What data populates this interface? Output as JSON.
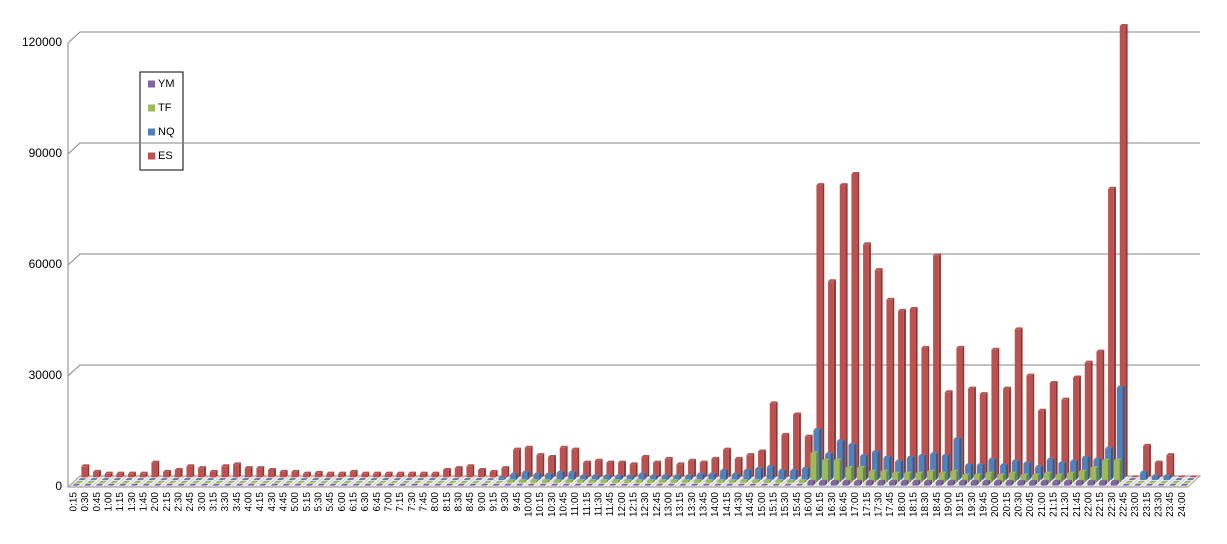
{
  "chart_data": {
    "type": "bar3d",
    "categories": [
      "0:15",
      "0:30",
      "0:45",
      "1:00",
      "1:15",
      "1:30",
      "1:45",
      "2:00",
      "2:15",
      "2:30",
      "2:45",
      "3:00",
      "3:15",
      "3:30",
      "3:45",
      "4:00",
      "4:15",
      "4:30",
      "4:45",
      "5:00",
      "5:15",
      "5:30",
      "5:45",
      "6:00",
      "6:15",
      "6:30",
      "6:45",
      "7:00",
      "7:15",
      "7:30",
      "7:45",
      "8:00",
      "8:15",
      "8:30",
      "8:45",
      "9:00",
      "9:15",
      "9:30",
      "9:45",
      "10:00",
      "10:15",
      "10:30",
      "10:45",
      "11:00",
      "11:15",
      "11:30",
      "11:45",
      "12:00",
      "12:15",
      "12:30",
      "12:45",
      "13:00",
      "13:15",
      "13:30",
      "13:45",
      "14:00",
      "14:15",
      "14:30",
      "14:45",
      "15:00",
      "15:15",
      "15:30",
      "15:45",
      "16:00",
      "16:15",
      "16:30",
      "16:45",
      "17:00",
      "17:15",
      "17:30",
      "17:45",
      "18:00",
      "18:15",
      "18:30",
      "18:45",
      "19:00",
      "19:15",
      "19:30",
      "19:45",
      "20:00",
      "20:15",
      "20:30",
      "20:45",
      "21:00",
      "21:15",
      "21:30",
      "21:45",
      "22:00",
      "22:15",
      "22:30",
      "22:45",
      "23:00",
      "23:15",
      "23:30",
      "23:45",
      "24:00"
    ],
    "series": [
      {
        "name": "YM",
        "color": "#8064a2",
        "values": [
          0,
          0,
          0,
          0,
          0,
          0,
          0,
          0,
          0,
          0,
          0,
          0,
          0,
          0,
          0,
          0,
          0,
          0,
          0,
          0,
          0,
          0,
          0,
          0,
          0,
          0,
          0,
          0,
          0,
          0,
          0,
          0,
          0,
          0,
          0,
          0,
          0,
          0,
          0,
          0,
          0,
          0,
          0,
          0,
          0,
          0,
          0,
          0,
          0,
          0,
          0,
          0,
          0,
          0,
          0,
          0,
          0,
          0,
          0,
          0,
          0,
          0,
          0,
          1000,
          1000,
          1000,
          1000,
          1000,
          1000,
          1000,
          1000,
          1000,
          1000,
          1000,
          1000,
          1000,
          1000,
          1000,
          1000,
          1000,
          1000,
          1000,
          1000,
          1000,
          1000,
          1000,
          1000,
          1000,
          1000,
          1000,
          0,
          0,
          0,
          0,
          0,
          0
        ]
      },
      {
        "name": "TF",
        "color": "#9bbb59",
        "values": [
          0,
          0,
          0,
          0,
          0,
          0,
          0,
          0,
          0,
          0,
          0,
          0,
          0,
          0,
          0,
          0,
          0,
          0,
          0,
          0,
          0,
          0,
          0,
          0,
          0,
          0,
          0,
          0,
          0,
          0,
          0,
          0,
          0,
          0,
          0,
          0,
          0,
          500,
          500,
          500,
          500,
          500,
          500,
          500,
          500,
          500,
          500,
          500,
          500,
          500,
          500,
          500,
          500,
          500,
          500,
          500,
          500,
          500,
          500,
          500,
          500,
          500,
          500,
          8000,
          6000,
          6000,
          4000,
          4000,
          3000,
          3000,
          2500,
          2500,
          2500,
          3000,
          2500,
          3000,
          2000,
          2000,
          2500,
          2000,
          2500,
          2000,
          2000,
          2500,
          2000,
          2500,
          3000,
          4000,
          6000,
          6000,
          0,
          0,
          0,
          0,
          0,
          0
        ]
      },
      {
        "name": "NQ",
        "color": "#4f81bd",
        "values": [
          0,
          0,
          0,
          0,
          0,
          0,
          0,
          0,
          0,
          0,
          0,
          0,
          0,
          0,
          0,
          0,
          0,
          0,
          0,
          0,
          0,
          0,
          0,
          0,
          0,
          0,
          0,
          0,
          0,
          0,
          0,
          0,
          0,
          0,
          0,
          0,
          500,
          1500,
          2000,
          1500,
          1500,
          2000,
          2000,
          1000,
          1000,
          1000,
          1000,
          1000,
          1500,
          1000,
          1000,
          1000,
          1000,
          1500,
          1500,
          2500,
          1500,
          2500,
          3000,
          3500,
          2500,
          2500,
          3000,
          13500,
          7000,
          10500,
          9500,
          6500,
          7500,
          6000,
          5000,
          6000,
          6500,
          7000,
          6500,
          11000,
          4000,
          4000,
          5500,
          4000,
          5000,
          4500,
          3500,
          5500,
          4500,
          5000,
          6000,
          5500,
          8500,
          25000,
          0,
          2000,
          1000,
          1000,
          0,
          0
        ]
      },
      {
        "name": "ES",
        "color": "#c0504d",
        "values": [
          3000,
          1500,
          1000,
          1000,
          1000,
          1000,
          4000,
          1500,
          2000,
          3000,
          2500,
          1500,
          3000,
          3500,
          2500,
          2500,
          2000,
          1500,
          1500,
          1000,
          1200,
          1000,
          1000,
          1500,
          1000,
          1000,
          1000,
          1000,
          1000,
          1000,
          1000,
          2000,
          2500,
          3000,
          2000,
          1500,
          2500,
          7500,
          8000,
          6000,
          5500,
          8000,
          7500,
          4000,
          4500,
          4000,
          4000,
          3500,
          5500,
          4000,
          5000,
          3500,
          4500,
          4000,
          5000,
          7500,
          5000,
          6000,
          7000,
          20000,
          11500,
          17000,
          11000,
          79000,
          53000,
          79000,
          82000,
          63000,
          56000,
          48000,
          45000,
          45500,
          35000,
          60000,
          23000,
          35000,
          24000,
          22500,
          34500,
          24000,
          40000,
          27500,
          18000,
          25500,
          21000,
          27000,
          31000,
          34000,
          78000,
          122000,
          0,
          8500,
          4000,
          6000,
          0,
          0
        ]
      }
    ],
    "ylim": [
      0,
      120000
    ],
    "yticks": [
      0,
      30000,
      60000,
      90000,
      120000
    ],
    "grid": true,
    "legend": "top-left"
  }
}
